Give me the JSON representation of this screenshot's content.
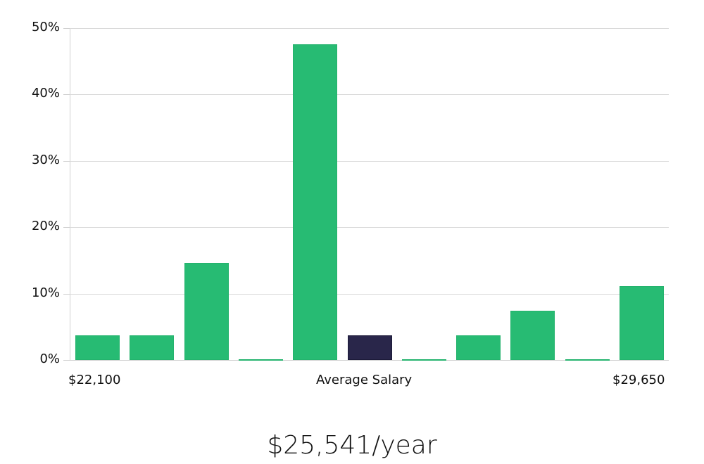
{
  "chart_data": {
    "type": "bar",
    "title": "",
    "xlabel": "Average Salary",
    "ylabel": "",
    "ylim": [
      0,
      50
    ],
    "yticks": [
      "0%",
      "10%",
      "20%",
      "30%",
      "40%",
      "50%"
    ],
    "grid": true,
    "legend": null,
    "categories": [
      "bin1",
      "bin2",
      "bin3",
      "bin4",
      "bin5",
      "bin6",
      "bin7",
      "bin8",
      "bin9",
      "bin10",
      "bin11"
    ],
    "values": [
      3.7,
      3.7,
      14.6,
      0,
      47.6,
      3.7,
      0,
      3.7,
      7.4,
      0,
      11.1
    ],
    "highlighted_index": 5,
    "colors": {
      "bar": "#27bb73",
      "highlight": "#29264a",
      "grid": "#d9d9d9"
    },
    "x_range_labels": {
      "min": "$22,100",
      "max": "$29,650"
    }
  },
  "labels": {
    "min_salary": "$22,100",
    "center": "Average Salary",
    "max_salary": "$29,650",
    "average": "$25,541/year"
  }
}
